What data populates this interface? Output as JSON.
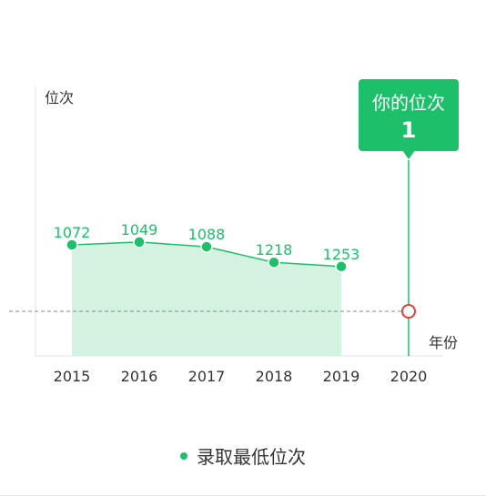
{
  "chart_data": {
    "type": "area",
    "ylabel": "位次",
    "xlabel": "年份",
    "categories": [
      "2015",
      "2016",
      "2017",
      "2018",
      "2019",
      "2020"
    ],
    "series": [
      {
        "name": "录取最低位次",
        "x": [
          "2015",
          "2016",
          "2017",
          "2018",
          "2019"
        ],
        "values": [
          1072,
          1049,
          1088,
          1218,
          1253
        ]
      }
    ],
    "user_rank": {
      "year": "2020",
      "value": 1,
      "label": "你的位次"
    },
    "y_scale": "reversed",
    "y_display_range": [
      2000,
      0
    ],
    "grid": false,
    "legend": "bottom-center"
  },
  "colors": {
    "accent": "#1dbf6a",
    "area_fill": "#d3f2e0",
    "marker_red": "#d9413b",
    "axis": "#e3e3e3",
    "dashed": "#888888",
    "text": "#333333"
  }
}
